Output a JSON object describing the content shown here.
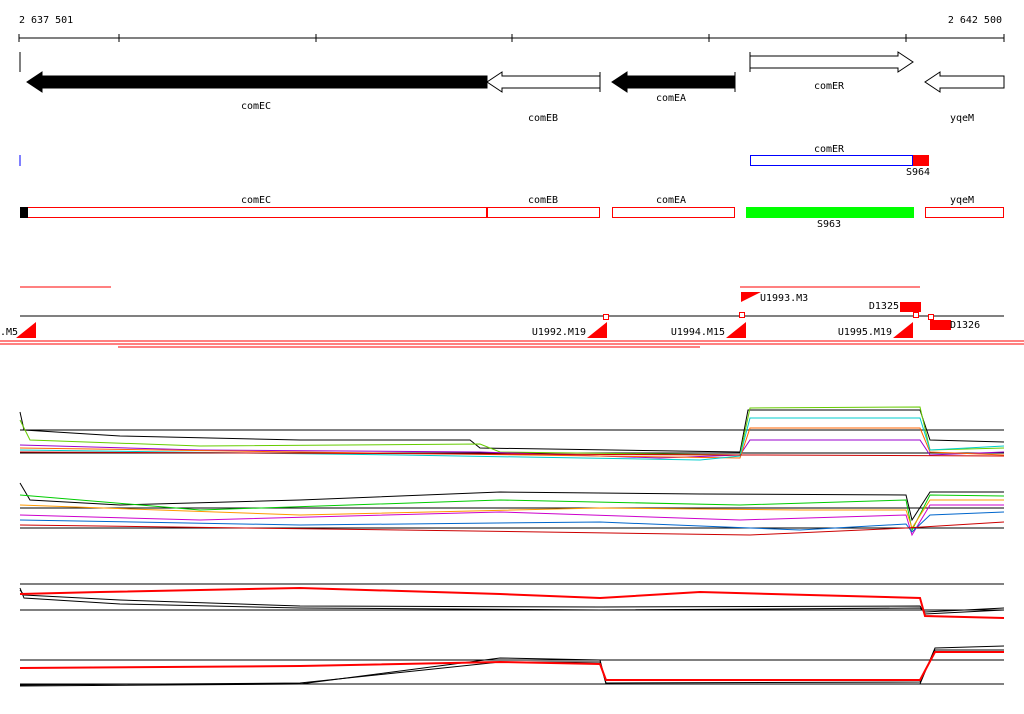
{
  "ruler": {
    "start": "2 637 501",
    "end": "2 642 500"
  },
  "genes": [
    {
      "label": "comEC"
    },
    {
      "label": "comEB"
    },
    {
      "label": "comEA"
    },
    {
      "label": "comER"
    },
    {
      "label": "yqeM"
    }
  ],
  "sites": {
    "gene": "comER",
    "site": "S964"
  },
  "transcripts": [
    {
      "label": "comEC"
    },
    {
      "label": "comEB"
    },
    {
      "label": "comEA"
    },
    {
      "label": "S963"
    },
    {
      "label": "yqeM"
    }
  ],
  "features": [
    {
      "label": ".M5"
    },
    {
      "label": "U1992.M19"
    },
    {
      "label": "U1994.M15"
    },
    {
      "label": "U1993.M3"
    },
    {
      "label": "D1325"
    },
    {
      "label": "U1995.M19"
    },
    {
      "label": "D1326"
    }
  ]
}
